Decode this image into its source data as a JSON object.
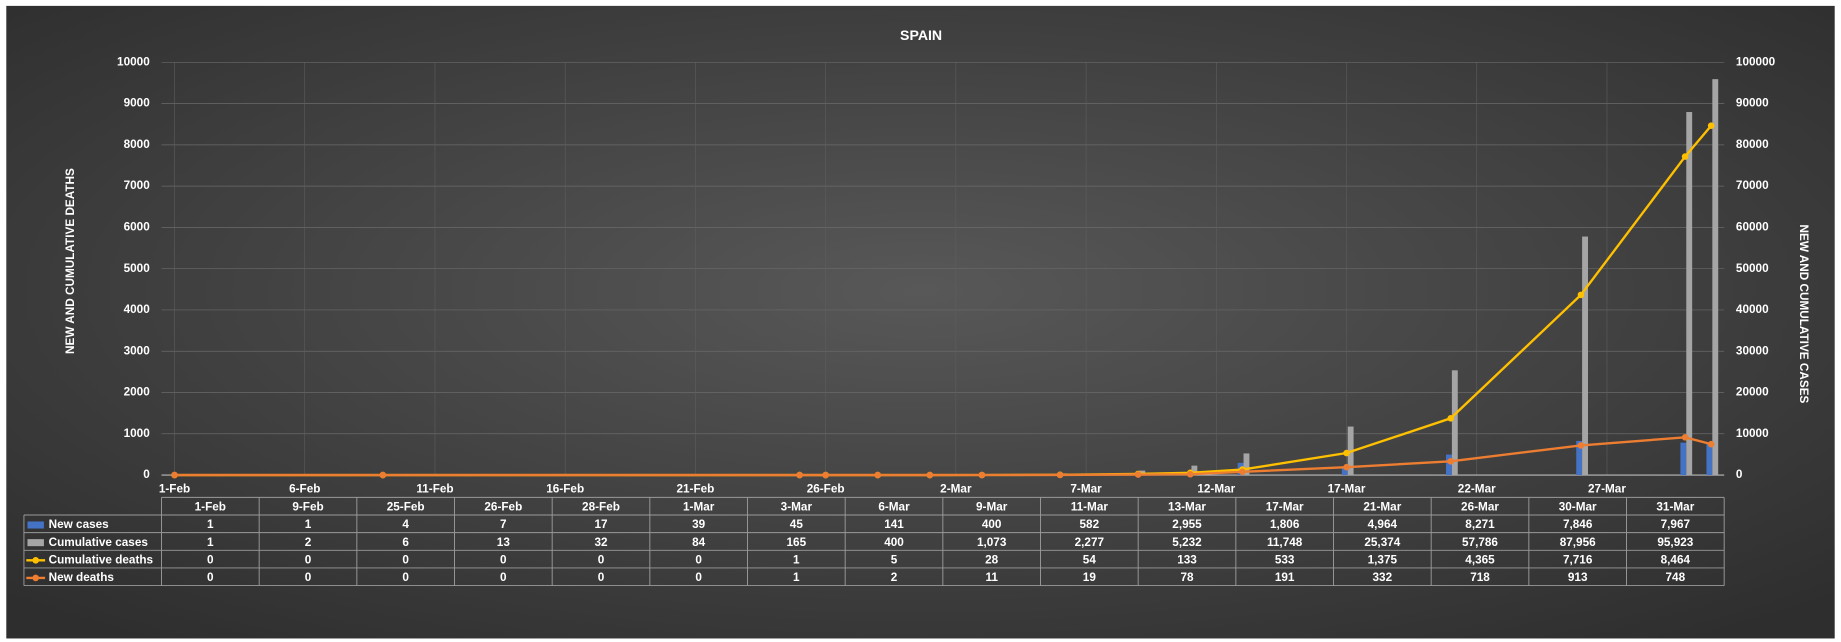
{
  "chart_data": {
    "type": "combo",
    "title": "SPAIN",
    "y_label": "NEW AND CUMULATIVE DEATHS",
    "y2_label": "NEW AND CUMULATIVE CASES",
    "x": [
      "1-Feb",
      "9-Feb",
      "25-Feb",
      "26-Feb",
      "28-Feb",
      "1-Mar",
      "3-Mar",
      "6-Mar",
      "9-Mar",
      "11-Mar",
      "13-Mar",
      "17-Mar",
      "21-Mar",
      "26-Mar",
      "30-Mar",
      "31-Mar"
    ],
    "xlim": [
      "1-Feb",
      "31-Mar"
    ],
    "xticks": [
      "1-Feb",
      "6-Feb",
      "11-Feb",
      "16-Feb",
      "21-Feb",
      "26-Feb",
      "2-Mar",
      "7-Mar",
      "12-Mar",
      "17-Mar",
      "22-Mar",
      "27-Mar"
    ],
    "ylim": [
      0,
      10000
    ],
    "yticks": [
      0,
      1000,
      2000,
      3000,
      4000,
      5000,
      6000,
      7000,
      8000,
      9000,
      10000
    ],
    "y2lim": [
      0,
      100000
    ],
    "y2ticks": [
      0,
      10000,
      20000,
      30000,
      40000,
      50000,
      60000,
      70000,
      80000,
      90000,
      100000
    ],
    "grid": true,
    "series": [
      {
        "name": "New cases",
        "type": "bar",
        "axis": "y2",
        "color": "#4472c4",
        "values": [
          1,
          1,
          4,
          7,
          17,
          39,
          45,
          141,
          400,
          582,
          2955,
          1806,
          4964,
          8271,
          7846,
          7967
        ],
        "value_labels": [
          "1",
          "1",
          "4",
          "7",
          "17",
          "39",
          "45",
          "141",
          "400",
          "582",
          "2,955",
          "1,806",
          "4,964",
          "8,271",
          "7,846",
          "7,967"
        ]
      },
      {
        "name": "Cumulative cases",
        "type": "bar",
        "axis": "y2",
        "color": "#a5a5a5",
        "values": [
          1,
          2,
          6,
          13,
          32,
          84,
          165,
          400,
          1073,
          2277,
          5232,
          11748,
          25374,
          57786,
          87956,
          95923
        ],
        "value_labels": [
          "1",
          "2",
          "6",
          "13",
          "32",
          "84",
          "165",
          "400",
          "1,073",
          "2,277",
          "5,232",
          "11,748",
          "25,374",
          "57,786",
          "87,956",
          "95,923"
        ]
      },
      {
        "name": "Cumulative deaths",
        "type": "line",
        "axis": "y",
        "color": "#ffc000",
        "values": [
          0,
          0,
          0,
          0,
          0,
          0,
          1,
          5,
          28,
          54,
          133,
          533,
          1375,
          4365,
          7716,
          8464
        ],
        "value_labels": [
          "0",
          "0",
          "0",
          "0",
          "0",
          "0",
          "1",
          "5",
          "28",
          "54",
          "133",
          "533",
          "1,375",
          "4,365",
          "7,716",
          "8,464"
        ]
      },
      {
        "name": "New deaths",
        "type": "line",
        "axis": "y",
        "color": "#ed7d31",
        "values": [
          0,
          0,
          0,
          0,
          0,
          0,
          1,
          2,
          11,
          19,
          78,
          191,
          332,
          718,
          913,
          748
        ],
        "value_labels": [
          "0",
          "0",
          "0",
          "0",
          "0",
          "0",
          "1",
          "2",
          "11",
          "19",
          "78",
          "191",
          "332",
          "718",
          "913",
          "748"
        ]
      }
    ]
  }
}
